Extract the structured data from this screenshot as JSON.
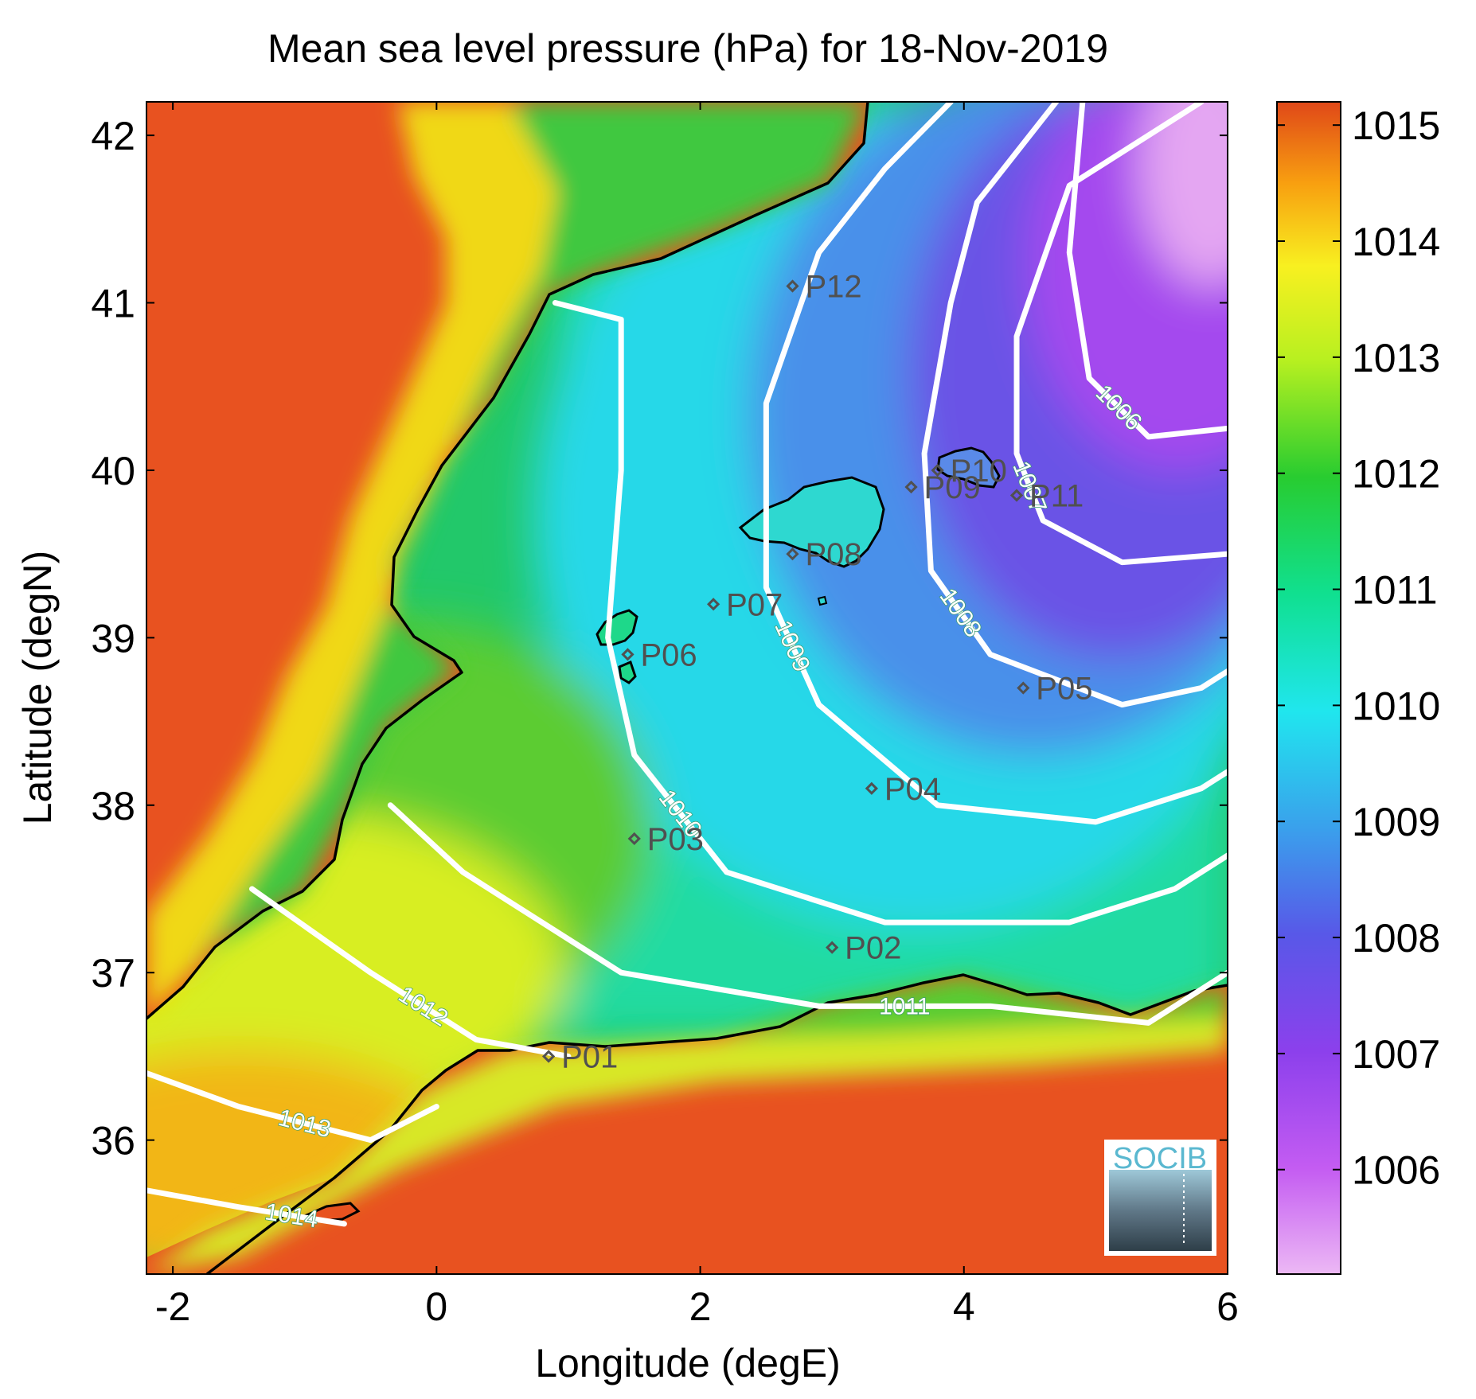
{
  "title": "Mean sea level pressure (hPa) for 18-Nov-2019",
  "xlabel": "Longitude (degE)",
  "ylabel": "Latitude (degN)",
  "logo_text": "SOCIB",
  "xlim": [
    -2.2,
    6.0
  ],
  "ylim": [
    35.2,
    42.2
  ],
  "xticks": [
    {
      "value": -2,
      "label": "-2"
    },
    {
      "value": 0,
      "label": "0"
    },
    {
      "value": 2,
      "label": "2"
    },
    {
      "value": 4,
      "label": "4"
    },
    {
      "value": 6,
      "label": "6"
    }
  ],
  "yticks": [
    {
      "value": 36,
      "label": "36"
    },
    {
      "value": 37,
      "label": "37"
    },
    {
      "value": 38,
      "label": "38"
    },
    {
      "value": 39,
      "label": "39"
    },
    {
      "value": 40,
      "label": "40"
    },
    {
      "value": 41,
      "label": "41"
    },
    {
      "value": 42,
      "label": "42"
    }
  ],
  "colorbar": {
    "range": [
      1005.1,
      1015.2
    ],
    "ticks": [
      {
        "value": 1006,
        "label": "1006"
      },
      {
        "value": 1007,
        "label": "1007"
      },
      {
        "value": 1008,
        "label": "1008"
      },
      {
        "value": 1009,
        "label": "1009"
      },
      {
        "value": 1010,
        "label": "1010"
      },
      {
        "value": 1011,
        "label": "1011"
      },
      {
        "value": 1012,
        "label": "1012"
      },
      {
        "value": 1013,
        "label": "1013"
      },
      {
        "value": 1014,
        "label": "1014"
      },
      {
        "value": 1015,
        "label": "1015"
      }
    ],
    "colors": [
      "#ecb8f4",
      "#b040f0",
      "#7a3ee8",
      "#3c7ae8",
      "#20e6ee",
      "#10e090",
      "#20c830",
      "#b8f020",
      "#f8f020",
      "#f8a010",
      "#e04818"
    ]
  },
  "stations": [
    {
      "label": "P01",
      "lon": 0.85,
      "lat": 36.5
    },
    {
      "label": "P02",
      "lon": 3.0,
      "lat": 37.15
    },
    {
      "label": "P03",
      "lon": 1.5,
      "lat": 37.8
    },
    {
      "label": "P04",
      "lon": 3.3,
      "lat": 38.1
    },
    {
      "label": "P05",
      "lon": 4.45,
      "lat": 38.7
    },
    {
      "label": "P06",
      "lon": 1.45,
      "lat": 38.9
    },
    {
      "label": "P07",
      "lon": 2.1,
      "lat": 39.2
    },
    {
      "label": "P08",
      "lon": 2.7,
      "lat": 39.5
    },
    {
      "label": "P09",
      "lon": 3.6,
      "lat": 39.9
    },
    {
      "label": "P10",
      "lon": 3.8,
      "lat": 40.0
    },
    {
      "label": "P11",
      "lon": 4.4,
      "lat": 39.85
    },
    {
      "label": "P12",
      "lon": 2.7,
      "lat": 41.1
    }
  ],
  "contours": [
    {
      "level": 1006,
      "label": "1006",
      "points": [
        [
          4.9,
          42.2
        ],
        [
          4.8,
          41.3
        ],
        [
          4.95,
          40.55
        ],
        [
          5.4,
          40.2
        ],
        [
          6.0,
          40.25
        ]
      ]
    },
    {
      "level": 1007,
      "label": "1007",
      "points": [
        [
          5.8,
          42.2
        ],
        [
          4.8,
          41.7
        ],
        [
          4.4,
          40.8
        ],
        [
          4.4,
          40.1
        ],
        [
          4.6,
          39.7
        ],
        [
          5.2,
          39.45
        ],
        [
          6.0,
          39.5
        ]
      ]
    },
    {
      "level": 1008,
      "label": "1008",
      "points": [
        [
          4.7,
          42.2
        ],
        [
          4.1,
          41.6
        ],
        [
          3.9,
          41.0
        ],
        [
          3.7,
          40.1
        ],
        [
          3.75,
          39.4
        ],
        [
          4.2,
          38.9
        ],
        [
          5.2,
          38.6
        ],
        [
          5.8,
          38.7
        ],
        [
          6.0,
          38.8
        ]
      ]
    },
    {
      "level": 1009,
      "label": "1009",
      "points": [
        [
          3.9,
          42.2
        ],
        [
          3.4,
          41.8
        ],
        [
          2.9,
          41.3
        ],
        [
          2.5,
          40.4
        ],
        [
          2.5,
          39.3
        ],
        [
          2.9,
          38.6
        ],
        [
          3.8,
          38.0
        ],
        [
          5.0,
          37.9
        ],
        [
          5.8,
          38.1
        ],
        [
          6.0,
          38.2
        ]
      ]
    },
    {
      "level": 1010,
      "label": "1010",
      "points": [
        [
          0.9,
          41.0
        ],
        [
          1.4,
          40.9
        ],
        [
          1.4,
          40.0
        ],
        [
          1.3,
          39.0
        ],
        [
          1.5,
          38.3
        ],
        [
          2.2,
          37.6
        ],
        [
          3.4,
          37.3
        ],
        [
          4.8,
          37.3
        ],
        [
          5.6,
          37.5
        ],
        [
          6.0,
          37.7
        ]
      ]
    },
    {
      "level": 1011,
      "label": "1011",
      "points": [
        [
          -0.35,
          38.0
        ],
        [
          0.2,
          37.6
        ],
        [
          1.4,
          37.0
        ],
        [
          2.9,
          36.8
        ],
        [
          4.2,
          36.8
        ],
        [
          5.4,
          36.7
        ],
        [
          6.0,
          37.0
        ]
      ]
    },
    {
      "level": 1012,
      "label": "1012",
      "points": [
        [
          -1.4,
          37.5
        ],
        [
          -0.5,
          37.0
        ],
        [
          0.3,
          36.6
        ],
        [
          1.0,
          36.5
        ]
      ]
    },
    {
      "level": 1013,
      "label": "1013",
      "points": [
        [
          -2.2,
          36.4
        ],
        [
          -1.5,
          36.2
        ],
        [
          -0.5,
          36.0
        ],
        [
          0.0,
          36.2
        ]
      ]
    },
    {
      "level": 1014,
      "label": "1014",
      "points": [
        [
          -2.2,
          35.7
        ],
        [
          -1.5,
          35.6
        ],
        [
          -0.7,
          35.5
        ]
      ]
    }
  ]
}
